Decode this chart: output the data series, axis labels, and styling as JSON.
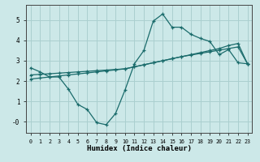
{
  "xlabel": "Humidex (Indice chaleur)",
  "bg_color": "#cce8e8",
  "line_color": "#1a6b6b",
  "grid_color": "#aacfcf",
  "xlim": [
    -0.5,
    23.5
  ],
  "ylim": [
    -0.55,
    5.75
  ],
  "xticks": [
    0,
    1,
    2,
    3,
    4,
    5,
    6,
    7,
    8,
    9,
    10,
    11,
    12,
    13,
    14,
    15,
    16,
    17,
    18,
    19,
    20,
    21,
    22,
    23
  ],
  "yticks": [
    0,
    1,
    2,
    3,
    4,
    5
  ],
  "ytick_labels": [
    "-0",
    "1",
    "2",
    "3",
    "4",
    "5"
  ],
  "line1_x": [
    0,
    1,
    2,
    3,
    4,
    5,
    6,
    7,
    8,
    9,
    10,
    11,
    12,
    13,
    14,
    15,
    16,
    17,
    18,
    19,
    20,
    21,
    22,
    23
  ],
  "line1_y": [
    2.65,
    2.45,
    2.2,
    2.2,
    1.6,
    0.85,
    0.6,
    -0.05,
    -0.15,
    0.4,
    1.55,
    2.85,
    3.5,
    4.95,
    5.3,
    4.65,
    4.65,
    4.3,
    4.1,
    3.95,
    3.3,
    3.55,
    2.9,
    2.85
  ],
  "line2_x": [
    0,
    1,
    2,
    3,
    4,
    5,
    6,
    7,
    8,
    9,
    10,
    11,
    12,
    13,
    14,
    15,
    16,
    17,
    18,
    19,
    20,
    21,
    22,
    23
  ],
  "line2_y": [
    2.1,
    2.15,
    2.2,
    2.25,
    2.3,
    2.35,
    2.4,
    2.45,
    2.5,
    2.55,
    2.6,
    2.7,
    2.8,
    2.9,
    3.0,
    3.1,
    3.2,
    3.3,
    3.4,
    3.5,
    3.6,
    3.75,
    3.85,
    2.85
  ],
  "line3_x": [
    0,
    1,
    2,
    3,
    4,
    5,
    6,
    7,
    8,
    9,
    10,
    11,
    12,
    13,
    14,
    15,
    16,
    17,
    18,
    19,
    20,
    21,
    22,
    23
  ],
  "line3_y": [
    2.3,
    2.33,
    2.36,
    2.39,
    2.42,
    2.45,
    2.48,
    2.51,
    2.54,
    2.57,
    2.6,
    2.7,
    2.8,
    2.9,
    3.0,
    3.1,
    3.2,
    3.28,
    3.36,
    3.44,
    3.52,
    3.6,
    3.68,
    2.85
  ]
}
